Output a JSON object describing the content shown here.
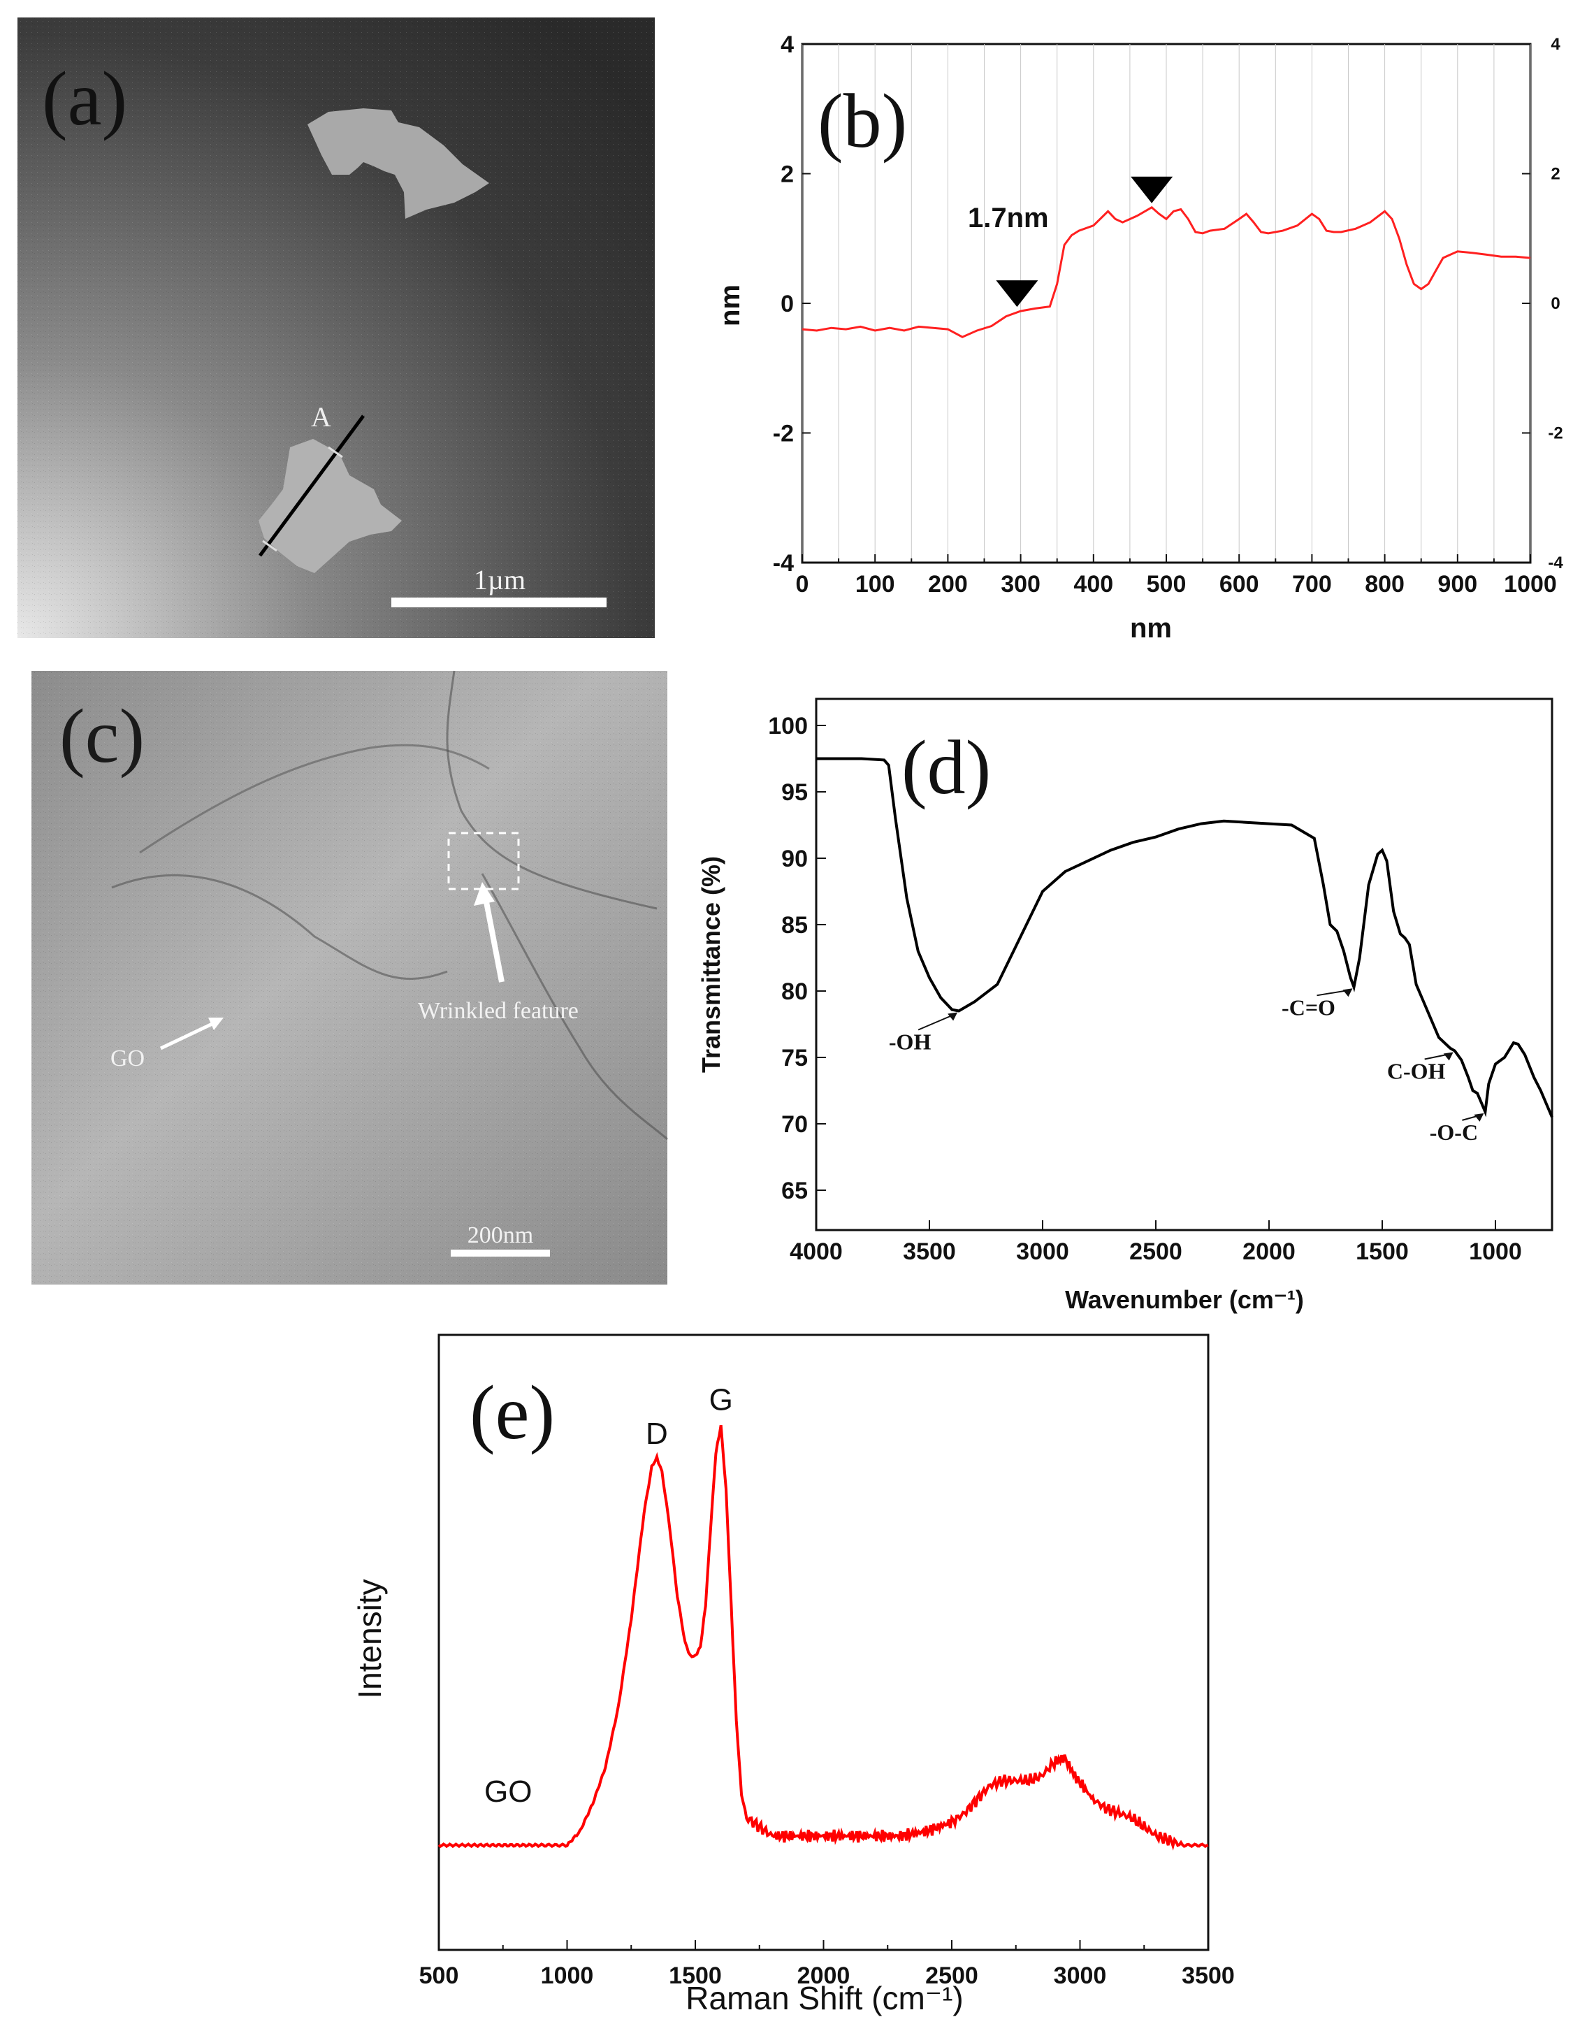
{
  "panel_labels": {
    "a": "(a)",
    "b": "(b)",
    "c": "(c)",
    "d": "(d)",
    "e": "(e)"
  },
  "afm_image": {
    "line_label": "A",
    "scale_bar": "1µm"
  },
  "tem_image": {
    "scale_bar": "200nm",
    "label_go": "GO",
    "label_wrinkle": "Wrinkled feature"
  },
  "chart_data": [
    {
      "panel": "b",
      "type": "line",
      "xlabel": "nm",
      "ylabel": "nm",
      "xlim": [
        0,
        1000
      ],
      "ylim": [
        -4,
        4
      ],
      "xticks": [
        0,
        100,
        200,
        300,
        400,
        500,
        600,
        700,
        800,
        900,
        1000
      ],
      "yticks": [
        -4,
        -2,
        0,
        2,
        4
      ],
      "right_yticks": [
        -4,
        -2,
        0,
        2,
        4
      ],
      "series_color": "#ff2020",
      "annotation": "1.7nm",
      "markers_x": [
        295,
        480
      ],
      "x": [
        0,
        20,
        40,
        60,
        80,
        100,
        120,
        140,
        160,
        180,
        200,
        220,
        240,
        260,
        280,
        300,
        320,
        340,
        350,
        360,
        370,
        380,
        400,
        420,
        430,
        440,
        460,
        480,
        490,
        500,
        510,
        520,
        530,
        540,
        550,
        560,
        580,
        600,
        610,
        620,
        630,
        640,
        660,
        680,
        700,
        710,
        720,
        730,
        740,
        760,
        780,
        800,
        810,
        820,
        830,
        840,
        850,
        860,
        870,
        880,
        890,
        900,
        920,
        940,
        960,
        980,
        1000
      ],
      "y": [
        -0.4,
        -0.42,
        -0.38,
        -0.4,
        -0.36,
        -0.42,
        -0.38,
        -0.42,
        -0.36,
        -0.38,
        -0.4,
        -0.52,
        -0.42,
        -0.35,
        -0.2,
        -0.12,
        -0.08,
        -0.05,
        0.3,
        0.9,
        1.05,
        1.12,
        1.2,
        1.42,
        1.3,
        1.25,
        1.35,
        1.48,
        1.38,
        1.3,
        1.42,
        1.45,
        1.3,
        1.1,
        1.08,
        1.12,
        1.15,
        1.3,
        1.38,
        1.25,
        1.1,
        1.08,
        1.12,
        1.2,
        1.38,
        1.3,
        1.12,
        1.1,
        1.1,
        1.15,
        1.25,
        1.42,
        1.3,
        1.0,
        0.6,
        0.3,
        0.22,
        0.3,
        0.5,
        0.7,
        0.75,
        0.8,
        0.78,
        0.75,
        0.72,
        0.72,
        0.7
      ]
    },
    {
      "panel": "d",
      "type": "line",
      "xlabel": "Wavenumber (cm⁻¹)",
      "ylabel": "Transmittance (%)",
      "xlim": [
        4000,
        750
      ],
      "ylim": [
        62,
        102
      ],
      "xticks": [
        4000,
        3500,
        3000,
        2500,
        2000,
        1500,
        1000
      ],
      "yticks": [
        65,
        70,
        75,
        80,
        85,
        90,
        95,
        100
      ],
      "series_color": "#000000",
      "peak_labels": [
        "-OH",
        "-C=O",
        "C-OH",
        "-O-C"
      ],
      "x": [
        4000,
        3800,
        3700,
        3680,
        3650,
        3600,
        3550,
        3500,
        3450,
        3400,
        3370,
        3300,
        3200,
        3100,
        3000,
        2900,
        2800,
        2700,
        2600,
        2500,
        2400,
        2300,
        2200,
        2100,
        2000,
        1900,
        1800,
        1760,
        1730,
        1700,
        1670,
        1640,
        1625,
        1600,
        1560,
        1520,
        1500,
        1480,
        1450,
        1420,
        1400,
        1380,
        1350,
        1300,
        1250,
        1200,
        1180,
        1150,
        1120,
        1100,
        1080,
        1060,
        1045,
        1030,
        1000,
        960,
        920,
        900,
        870,
        830,
        800,
        750
      ],
      "y": [
        97.5,
        97.5,
        97.4,
        97.0,
        93.0,
        87.0,
        83.0,
        81.0,
        79.5,
        78.6,
        78.5,
        79.2,
        80.5,
        84.0,
        87.5,
        89.0,
        89.8,
        90.6,
        91.2,
        91.6,
        92.2,
        92.6,
        92.8,
        92.7,
        92.6,
        92.5,
        91.5,
        88.0,
        85.0,
        84.5,
        83.0,
        81.0,
        80.3,
        82.5,
        88.0,
        90.3,
        90.6,
        89.8,
        86.0,
        84.3,
        84.0,
        83.5,
        80.5,
        78.5,
        76.5,
        75.7,
        75.5,
        74.8,
        73.5,
        72.5,
        72.3,
        71.5,
        70.9,
        73.0,
        74.5,
        75.0,
        76.1,
        76.0,
        75.2,
        73.5,
        72.5,
        70.5
      ]
    },
    {
      "panel": "e",
      "type": "line",
      "xlabel": "Raman Shift (cm⁻¹)",
      "ylabel": "Intensity",
      "xlim": [
        500,
        3500
      ],
      "xticks": [
        500,
        1000,
        1500,
        2000,
        2500,
        3000,
        3500
      ],
      "series_color": "#ff0000",
      "series": [
        {
          "name": "GO"
        }
      ],
      "peak_labels": [
        "D",
        "G"
      ],
      "x": [
        500,
        700,
        900,
        1000,
        1050,
        1100,
        1150,
        1200,
        1250,
        1300,
        1330,
        1350,
        1370,
        1400,
        1430,
        1460,
        1480,
        1500,
        1520,
        1540,
        1560,
        1580,
        1600,
        1620,
        1640,
        1660,
        1680,
        1700,
        1750,
        1800,
        1900,
        2000,
        2100,
        2200,
        2300,
        2400,
        2500,
        2550,
        2600,
        2650,
        2700,
        2750,
        2800,
        2850,
        2900,
        2940,
        2980,
        3050,
        3100,
        3150,
        3200,
        3250,
        3300,
        3350,
        3400,
        3500
      ],
      "y": [
        3,
        3,
        3,
        3,
        6,
        12,
        20,
        33,
        52,
        75,
        85,
        87,
        84,
        72,
        57,
        47,
        44,
        44,
        46,
        55,
        72,
        88,
        94,
        80,
        55,
        30,
        14,
        9,
        7,
        5,
        5,
        5,
        5,
        5,
        5,
        6,
        8,
        10,
        13,
        16,
        17,
        17,
        17,
        18,
        21,
        22,
        18,
        13,
        11,
        10,
        9,
        7,
        5,
        4,
        3,
        3
      ]
    }
  ]
}
